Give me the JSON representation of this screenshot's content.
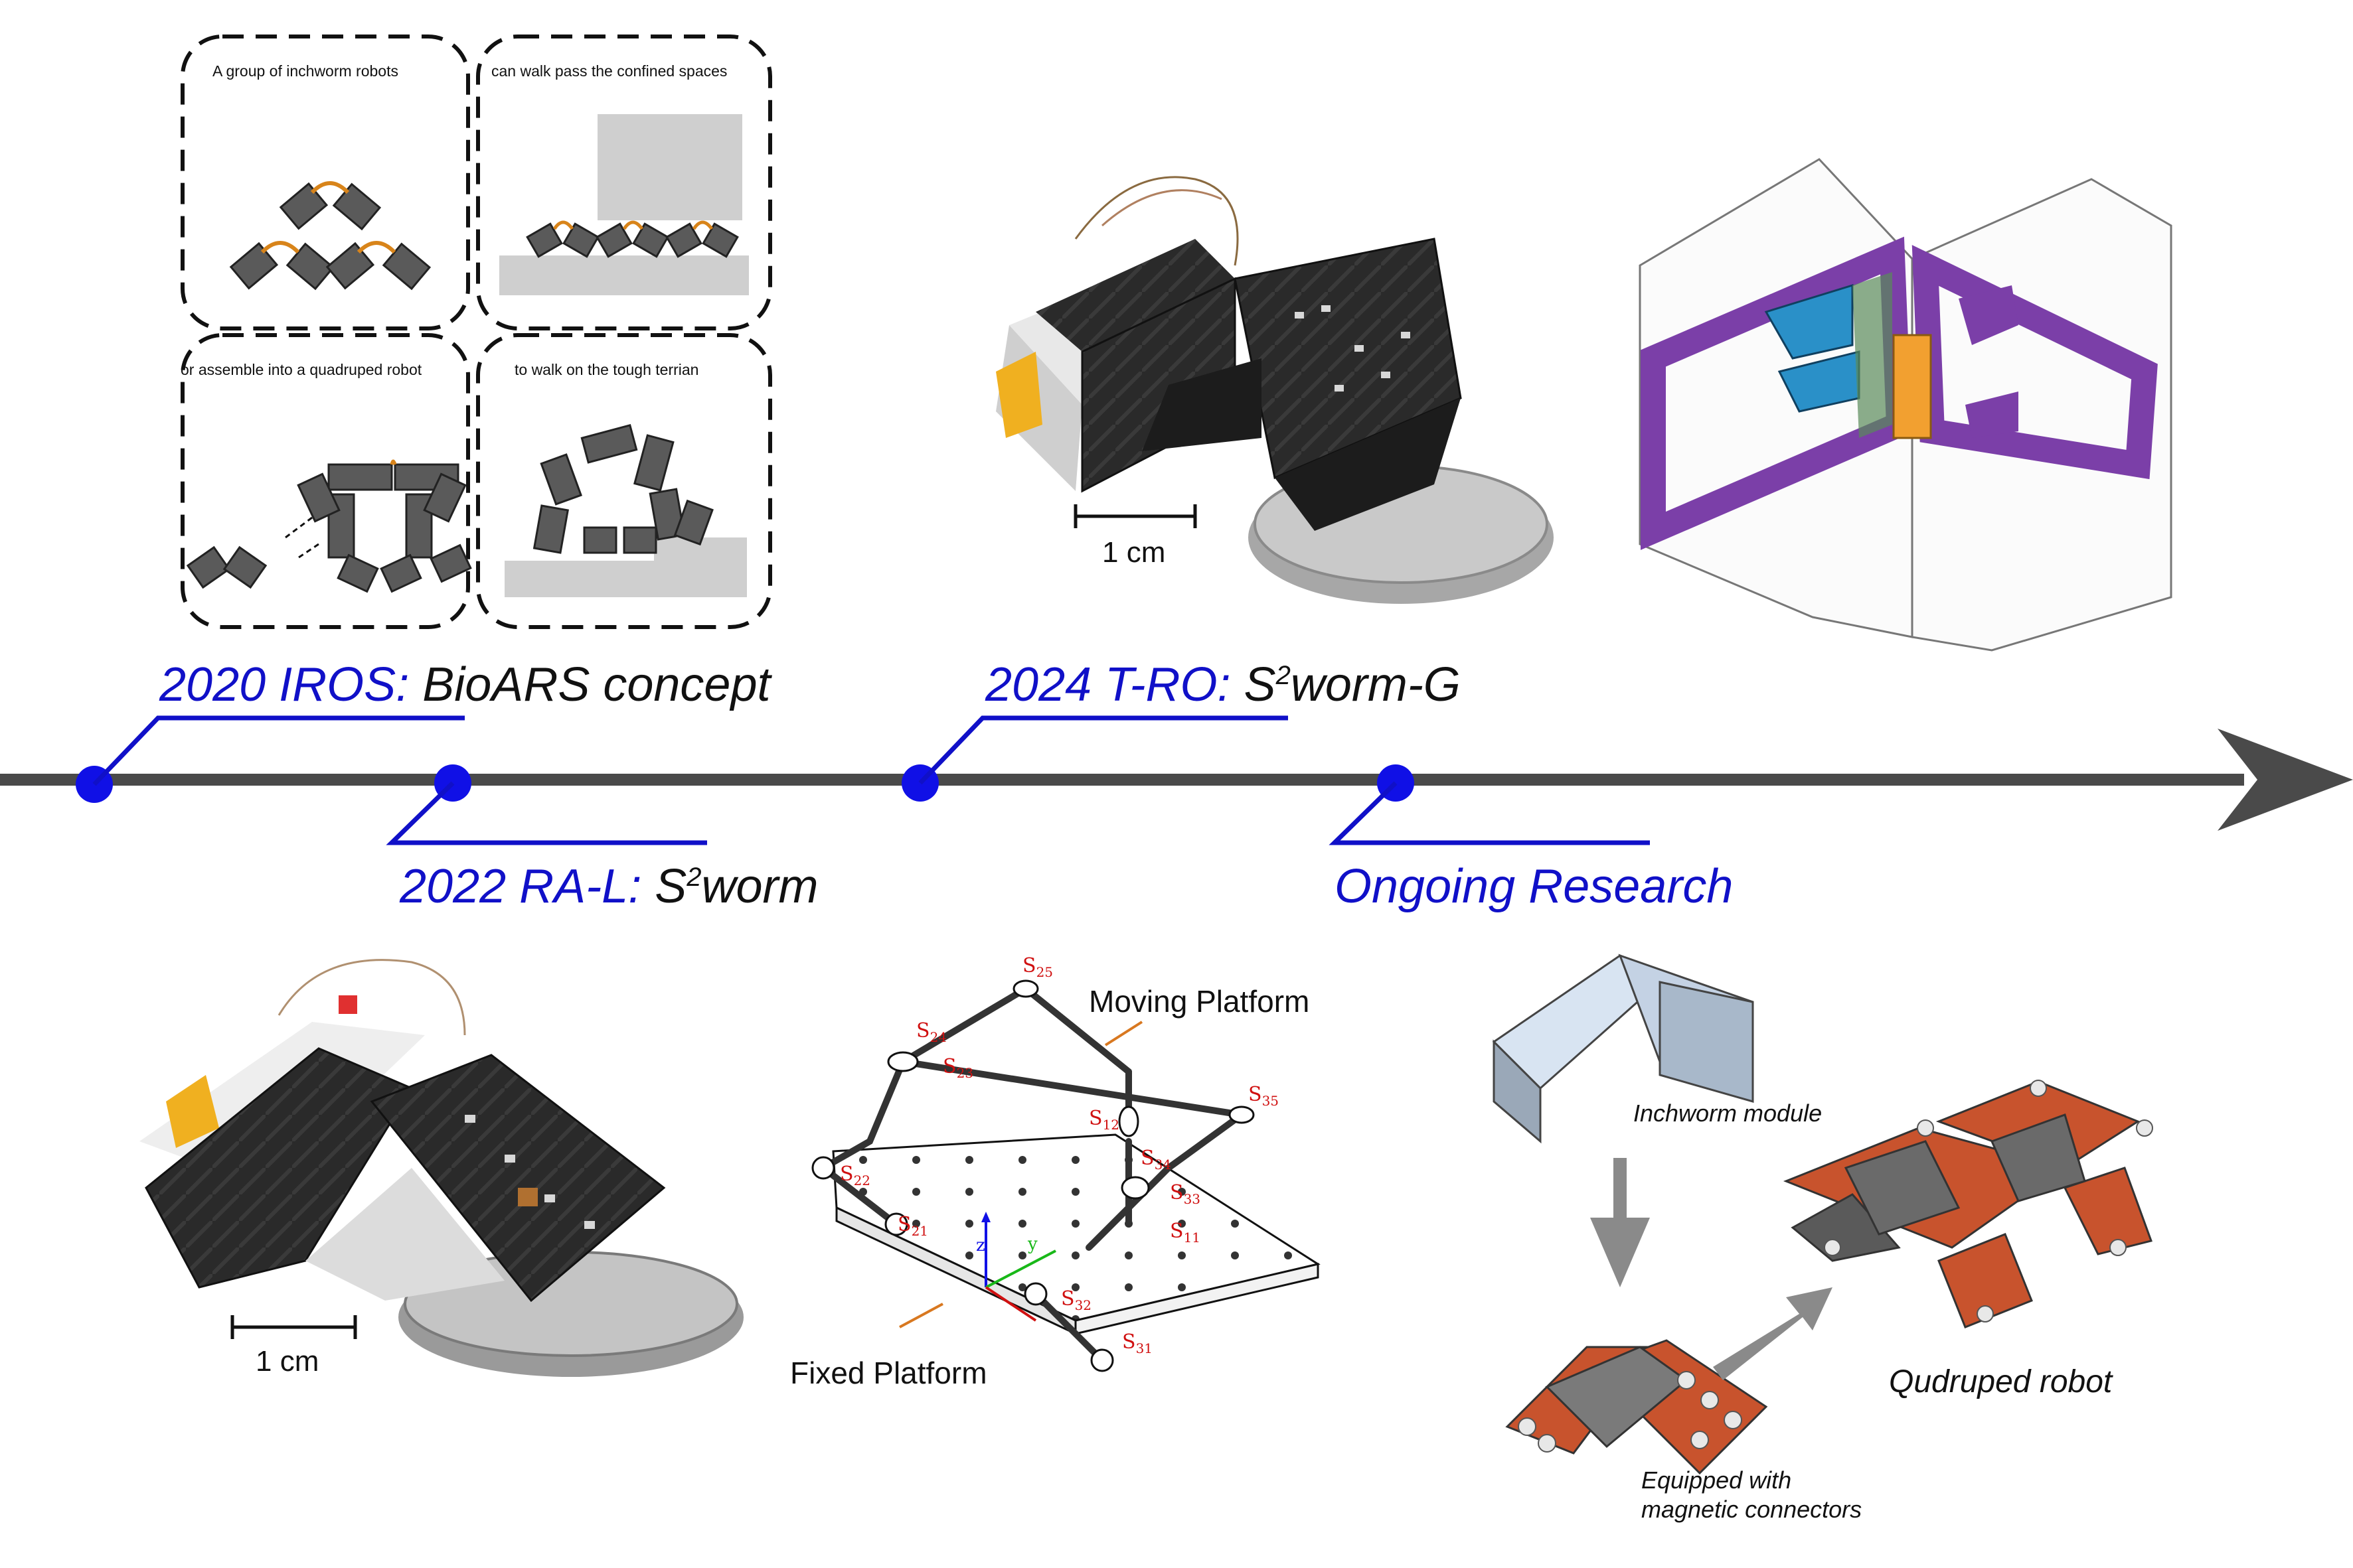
{
  "timeline": {
    "milestones": [
      {
        "venue": "2020 IROS:",
        "name": "BioARS concept"
      },
      {
        "venue": "2022 RA-L:",
        "name_pre": "S",
        "name_sup": "2",
        "name_post": "worm"
      },
      {
        "venue": "2024 T-RO:",
        "name_pre": "S",
        "name_sup": "2",
        "name_post": "worm-G"
      },
      {
        "venue": "Ongoing Research"
      }
    ]
  },
  "concept_panels": [
    "A group of inchworm robots",
    "can walk pass the confined spaces",
    "or assemble into a quadruped robot",
    "to walk on the tough terrian"
  ],
  "scale_bars": [
    "1 cm",
    "1 cm"
  ],
  "mechanism": {
    "moving_platform": "Moving Platform",
    "fixed_platform": "Fixed Platform",
    "axes": {
      "z": "z",
      "y": "y"
    },
    "screws": [
      {
        "s": "S",
        "sub": "25"
      },
      {
        "s": "S",
        "sub": "24"
      },
      {
        "s": "S",
        "sub": "23"
      },
      {
        "s": "S",
        "sub": "35"
      },
      {
        "s": "S",
        "sub": "12"
      },
      {
        "s": "S",
        "sub": "34"
      },
      {
        "s": "S",
        "sub": "22"
      },
      {
        "s": "S",
        "sub": "33"
      },
      {
        "s": "S",
        "sub": "11"
      },
      {
        "s": "S",
        "sub": "21"
      },
      {
        "s": "S",
        "sub": "32"
      },
      {
        "s": "S",
        "sub": "31"
      }
    ]
  },
  "ongoing": {
    "inchworm_module": "Inchworm module",
    "magnetic_line1": "Equipped with",
    "magnetic_line2": "magnetic connectors",
    "quadruped": "Qudruped robot"
  },
  "colors": {
    "accent_blue": "#1010c8",
    "timeline_gray": "#4a4a4a",
    "screw_red": "#d01010",
    "frame_purple": "#7b3fa8",
    "connector_orange": "#c8532d"
  }
}
